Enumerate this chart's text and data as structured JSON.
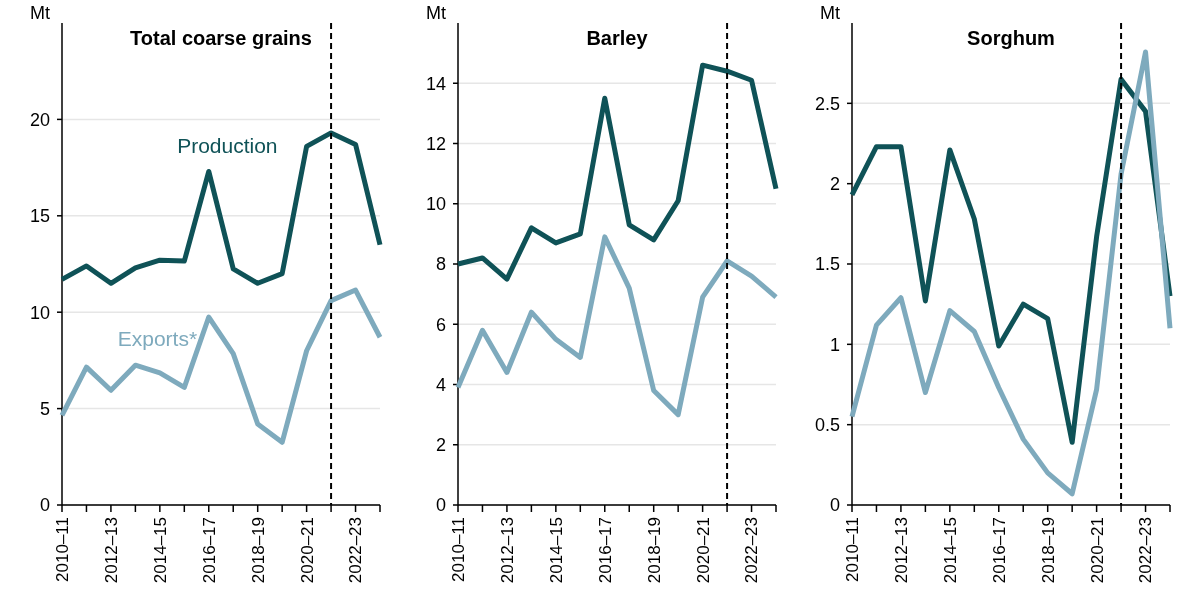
{
  "chart_data": [
    {
      "type": "line",
      "title": "Total coarse grains",
      "ylabel": "Mt",
      "categories": [
        "2010–11",
        null,
        "2012–13",
        null,
        "2014–15",
        null,
        "2016–17",
        null,
        "2018–19",
        null,
        "2020–21",
        null,
        "2022–23",
        null
      ],
      "series": [
        {
          "name": "Production",
          "color": "#0f5257",
          "values": [
            11.7,
            12.4,
            11.5,
            12.3,
            12.7,
            12.65,
            17.3,
            12.25,
            11.5,
            12.0,
            18.6,
            19.3,
            18.7,
            13.5
          ]
        },
        {
          "name": "Exports*",
          "color": "#7eaabd",
          "values": [
            4.65,
            7.15,
            5.95,
            7.25,
            6.85,
            6.1,
            9.75,
            7.85,
            4.2,
            3.25,
            8.0,
            10.6,
            11.15,
            8.7
          ]
        }
      ],
      "ylim": [
        0,
        25
      ],
      "yticks": [
        0,
        5,
        10,
        15,
        20
      ],
      "grid": "y",
      "line_style": "solid",
      "marker": "none"
    },
    {
      "type": "line",
      "title": "Barley",
      "ylabel": "Mt",
      "categories": [
        "2010–11",
        null,
        "2012–13",
        null,
        "2014–15",
        null,
        "2016–17",
        null,
        "2018–19",
        null,
        "2020–21",
        null,
        "2022–23",
        null
      ],
      "series": [
        {
          "color": "#0f5257",
          "values": [
            8.0,
            8.2,
            7.5,
            9.2,
            8.7,
            9.0,
            13.5,
            9.3,
            8.8,
            10.1,
            14.6,
            14.4,
            14.1,
            10.5
          ]
        },
        {
          "color": "#7eaabd",
          "values": [
            3.9,
            5.8,
            4.4,
            6.4,
            5.5,
            4.9,
            8.9,
            7.2,
            3.8,
            3.0,
            6.9,
            8.1,
            7.6,
            6.9
          ]
        }
      ],
      "ylim": [
        0,
        16
      ],
      "yticks": [
        0,
        2,
        4,
        6,
        8,
        10,
        12,
        14
      ],
      "grid": "y",
      "line_style": "solid",
      "marker": "none"
    },
    {
      "type": "line",
      "title": "Sorghum",
      "ylabel": "Mt",
      "categories": [
        "2010–11",
        null,
        "2012–13",
        null,
        "2014–15",
        null,
        "2016–17",
        null,
        "2018–19",
        null,
        "2020–21",
        null,
        "2022–23",
        null
      ],
      "series": [
        {
          "color": "#0f5257",
          "values": [
            1.93,
            2.23,
            2.23,
            1.27,
            2.21,
            1.78,
            0.99,
            1.25,
            1.16,
            0.39,
            1.67,
            2.65,
            2.45,
            1.3
          ]
        },
        {
          "color": "#7eaabd",
          "values": [
            0.55,
            1.12,
            1.29,
            0.7,
            1.21,
            1.08,
            0.73,
            0.41,
            0.2,
            0.07,
            0.72,
            2.06,
            2.82,
            1.1
          ]
        }
      ],
      "ylim": [
        0,
        3
      ],
      "yticks": [
        0,
        0.5,
        1,
        1.5,
        2,
        2.5
      ],
      "grid": "y",
      "line_style": "solid",
      "marker": "none"
    }
  ]
}
